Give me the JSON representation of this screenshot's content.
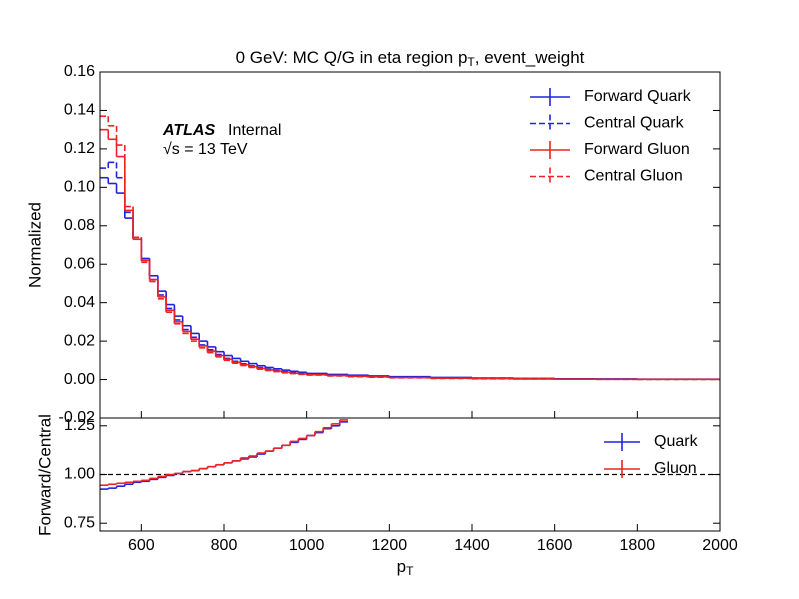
{
  "chart_data": [
    {
      "type": "histogram",
      "title": [
        "0 GeV: MC Q/G in eta region p",
        "T",
        ", event_weight"
      ],
      "ylabel": "Normalized",
      "annotations": [
        "ATLAS",
        "Internal",
        "√s = 13 TeV"
      ],
      "bins": [
        500,
        520,
        540,
        560,
        580,
        600,
        620,
        640,
        660,
        680,
        700,
        720,
        740,
        760,
        780,
        800,
        820,
        840,
        860,
        880,
        900,
        920,
        940,
        960,
        980,
        1000,
        1050,
        1100,
        1150,
        1200,
        1300,
        1400,
        1500,
        1600,
        1700,
        1800,
        2000
      ],
      "series": [
        {
          "name": "Forward Quark",
          "color": "#2222dd",
          "linestyle": "solid",
          "values": [
            0.105,
            0.102,
            0.097,
            0.084,
            0.073,
            0.063,
            0.054,
            0.046,
            0.039,
            0.033,
            0.028,
            0.024,
            0.02,
            0.017,
            0.0145,
            0.0125,
            0.011,
            0.0095,
            0.0083,
            0.0072,
            0.0063,
            0.0056,
            0.0049,
            0.0043,
            0.0038,
            0.0032,
            0.0027,
            0.0023,
            0.0019,
            0.0015,
            0.0011,
            0.0008,
            0.0006,
            0.0004,
            0.0003,
            0.0002
          ]
        },
        {
          "name": "Central Quark",
          "color": "#2222dd",
          "linestyle": "dashed",
          "values": [
            0.11,
            0.113,
            0.105,
            0.087,
            0.074,
            0.062,
            0.052,
            0.044,
            0.037,
            0.031,
            0.026,
            0.022,
            0.018,
            0.0155,
            0.013,
            0.011,
            0.0095,
            0.0082,
            0.0071,
            0.0062,
            0.0054,
            0.0047,
            0.0041,
            0.0036,
            0.0032,
            0.0027,
            0.0023,
            0.0019,
            0.0016,
            0.0012,
            0.0009,
            0.0007,
            0.0005,
            0.0003,
            0.0002,
            0.0001
          ]
        },
        {
          "name": "Forward Gluon",
          "color": "#ee2222",
          "linestyle": "solid",
          "values": [
            0.13,
            0.125,
            0.116,
            0.088,
            0.073,
            0.062,
            0.052,
            0.043,
            0.036,
            0.03,
            0.025,
            0.021,
            0.0175,
            0.0148,
            0.0125,
            0.0106,
            0.009,
            0.0078,
            0.0067,
            0.0058,
            0.005,
            0.0044,
            0.0038,
            0.0033,
            0.0029,
            0.0025,
            0.0021,
            0.0017,
            0.0014,
            0.001,
            0.0007,
            0.0005,
            0.0003,
            0.0002,
            0.0001,
            0.0001
          ]
        },
        {
          "name": "Central Gluon",
          "color": "#ee2222",
          "linestyle": "dashed",
          "values": [
            0.137,
            0.132,
            0.122,
            0.09,
            0.074,
            0.061,
            0.051,
            0.042,
            0.035,
            0.029,
            0.024,
            0.02,
            0.0165,
            0.014,
            0.0118,
            0.01,
            0.0085,
            0.0073,
            0.0063,
            0.0054,
            0.0047,
            0.0041,
            0.0035,
            0.0031,
            0.0027,
            0.0023,
            0.0019,
            0.0015,
            0.0012,
            0.0009,
            0.0006,
            0.0004,
            0.0003,
            0.0002,
            0.0001,
            0.0001
          ]
        }
      ],
      "xlim": [
        500,
        2000
      ],
      "ylim": [
        -0.02,
        0.16
      ],
      "yticks": [
        {
          "value": -0.02,
          "label": "-0.02"
        },
        {
          "value": 0,
          "label": "0.00"
        },
        {
          "value": 0.02,
          "label": "0.02"
        },
        {
          "value": 0.04,
          "label": "0.04"
        },
        {
          "value": 0.06,
          "label": "0.06"
        },
        {
          "value": 0.08,
          "label": "0.08"
        },
        {
          "value": 0.1,
          "label": "0.10"
        },
        {
          "value": 0.12,
          "label": "0.12"
        },
        {
          "value": 0.14,
          "label": "0.14"
        },
        {
          "value": 0.16,
          "label": "0.16"
        }
      ],
      "legend": "upper right"
    },
    {
      "type": "histogram",
      "ylabel": "Forward/Central",
      "xlabel": [
        "p",
        "T"
      ],
      "bins": [
        500,
        520,
        540,
        560,
        580,
        600,
        620,
        640,
        660,
        680,
        700,
        720,
        740,
        760,
        780,
        800,
        820,
        840,
        860,
        880,
        900,
        920,
        940,
        960,
        980,
        1000,
        1020,
        1040,
        1060,
        1080,
        1100
      ],
      "series": [
        {
          "name": "Quark",
          "color": "#2222dd",
          "linestyle": "solid",
          "values": [
            0.925,
            0.93,
            0.94,
            0.95,
            0.96,
            0.965,
            0.975,
            0.985,
            0.995,
            1.005,
            1.015,
            1.02,
            1.03,
            1.04,
            1.05,
            1.06,
            1.07,
            1.08,
            1.09,
            1.105,
            1.12,
            1.135,
            1.15,
            1.165,
            1.18,
            1.2,
            1.215,
            1.235,
            1.25,
            1.27
          ]
        },
        {
          "name": "Gluon",
          "color": "#ee2222",
          "linestyle": "solid",
          "values": [
            0.945,
            0.95,
            0.955,
            0.96,
            0.965,
            0.97,
            0.98,
            0.99,
            1.0,
            1.005,
            1.015,
            1.02,
            1.03,
            1.04,
            1.05,
            1.06,
            1.07,
            1.085,
            1.095,
            1.11,
            1.12,
            1.135,
            1.15,
            1.17,
            1.185,
            1.2,
            1.22,
            1.24,
            1.26,
            1.28
          ]
        }
      ],
      "reference_line": 1,
      "xlim": [
        500,
        2000
      ],
      "xticks": [
        600,
        800,
        1000,
        1200,
        1400,
        1600,
        1800,
        2000
      ],
      "ylim": [
        0.71,
        1.29
      ],
      "yticks": [
        0.75,
        {
          "value": 1,
          "label": "1.00"
        },
        1.25
      ],
      "legend": "upper right"
    }
  ]
}
